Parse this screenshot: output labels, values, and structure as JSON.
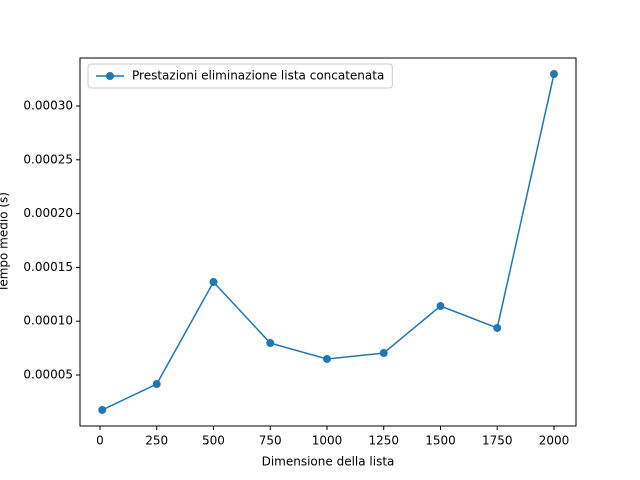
{
  "chart_data": {
    "type": "line",
    "xlabel": "Dimensione della lista",
    "ylabel": "Tempo medio (s)",
    "x": [
      10,
      250,
      500,
      750,
      1000,
      1250,
      1500,
      1750,
      2000
    ],
    "series": [
      {
        "name": "Prestazioni eliminazione lista concatenata",
        "color": "#1f77b4",
        "values": [
          1.75e-05,
          4.16e-05,
          0.0001364,
          7.97e-05,
          6.49e-05,
          7.04e-05,
          0.0001141,
          9.37e-05,
          0.0003297
        ]
      }
    ],
    "xlim": [
      -88,
      2097
    ],
    "xticks": [
      0,
      250,
      500,
      750,
      1000,
      1250,
      1500,
      1750,
      2000
    ],
    "ylim": [
      2.6e-06,
      0.0003446
    ],
    "yticks": [
      {
        "value": 5e-05,
        "label": "0.00005"
      },
      {
        "value": 0.0001,
        "label": "0.00010"
      },
      {
        "value": 0.00015,
        "label": "0.00015"
      },
      {
        "value": 0.0002,
        "label": "0.00020"
      },
      {
        "value": 0.00025,
        "label": "0.00025"
      },
      {
        "value": 0.0003,
        "label": "0.00030"
      }
    ],
    "legend": "upper left"
  }
}
